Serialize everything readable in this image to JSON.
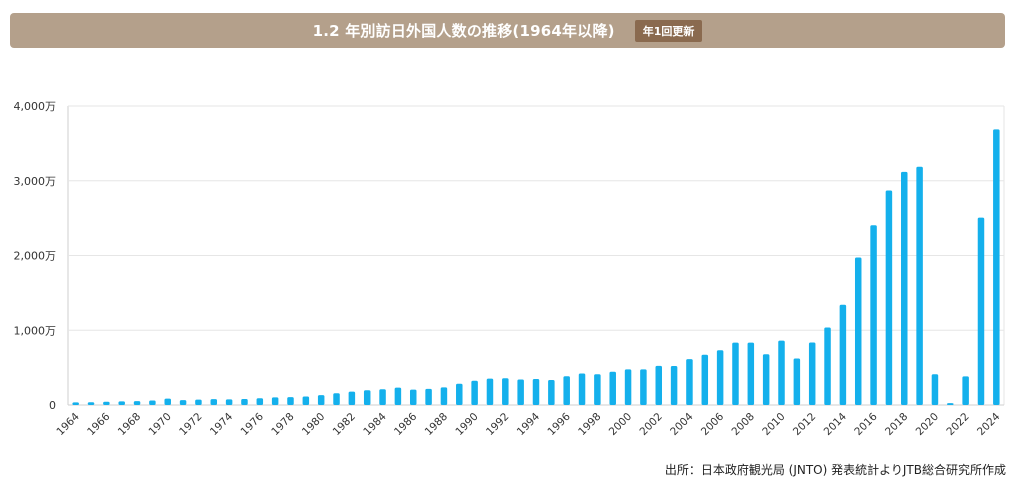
{
  "header": {
    "title": "1.2 年別訪日外国人数の推移(1964年以降)",
    "badge": "年1回更新"
  },
  "source": "出所：日本政府観光局 (JNTO) 発表統計よりJTB総合研究所作成",
  "colors": {
    "bar": "#14b0ec",
    "header_bg": "#b4a08b",
    "badge_bg": "#8a6a4f",
    "grid": "#e6e6e6"
  },
  "chart_data": {
    "type": "bar",
    "title": "",
    "xlabel": "",
    "ylabel": "",
    "ylim": [
      0,
      4000
    ],
    "y_ticks": [
      {
        "value": 0,
        "label": "0"
      },
      {
        "value": 1000,
        "label": "1,000万"
      },
      {
        "value": 2000,
        "label": "2,000万"
      },
      {
        "value": 3000,
        "label": "3,000万"
      },
      {
        "value": 4000,
        "label": "4,000万"
      }
    ],
    "grid": true,
    "x_tick_labels": [
      "1964",
      "1966",
      "1968",
      "1970",
      "1972",
      "1974",
      "1976",
      "1978",
      "1980",
      "1982",
      "1984",
      "1986",
      "1988",
      "1990",
      "1992",
      "1994",
      "1996",
      "1998",
      "2000",
      "2002",
      "2004",
      "2006",
      "2008",
      "2010",
      "2012",
      "2014",
      "2016",
      "2018",
      "2020",
      "2022",
      "2024"
    ],
    "categories": [
      "1964",
      "1965",
      "1966",
      "1967",
      "1968",
      "1969",
      "1970",
      "1971",
      "1972",
      "1973",
      "1974",
      "1975",
      "1976",
      "1977",
      "1978",
      "1979",
      "1980",
      "1981",
      "1982",
      "1983",
      "1984",
      "1985",
      "1986",
      "1987",
      "1988",
      "1989",
      "1990",
      "1991",
      "1992",
      "1993",
      "1994",
      "1995",
      "1996",
      "1997",
      "1998",
      "1999",
      "2000",
      "2001",
      "2002",
      "2003",
      "2004",
      "2005",
      "2006",
      "2007",
      "2008",
      "2009",
      "2010",
      "2011",
      "2012",
      "2013",
      "2014",
      "2015",
      "2016",
      "2017",
      "2018",
      "2019",
      "2020",
      "2021",
      "2022",
      "2023",
      "2024"
    ],
    "values": [
      35,
      37,
      43,
      48,
      52,
      61,
      85,
      66,
      72,
      78,
      76,
      81,
      91,
      102,
      106,
      113,
      132,
      158,
      179,
      197,
      211,
      233,
      206,
      216,
      236,
      284,
      324,
      353,
      358,
      341,
      347,
      335,
      384,
      422,
      411,
      444,
      476,
      477,
      524,
      521,
      614,
      673,
      733,
      835,
      835,
      679,
      861,
      622,
      836,
      1036,
      1341,
      1974,
      2404,
      2869,
      3119,
      3188,
      412,
      25,
      383,
      2507,
      3687
    ]
  }
}
